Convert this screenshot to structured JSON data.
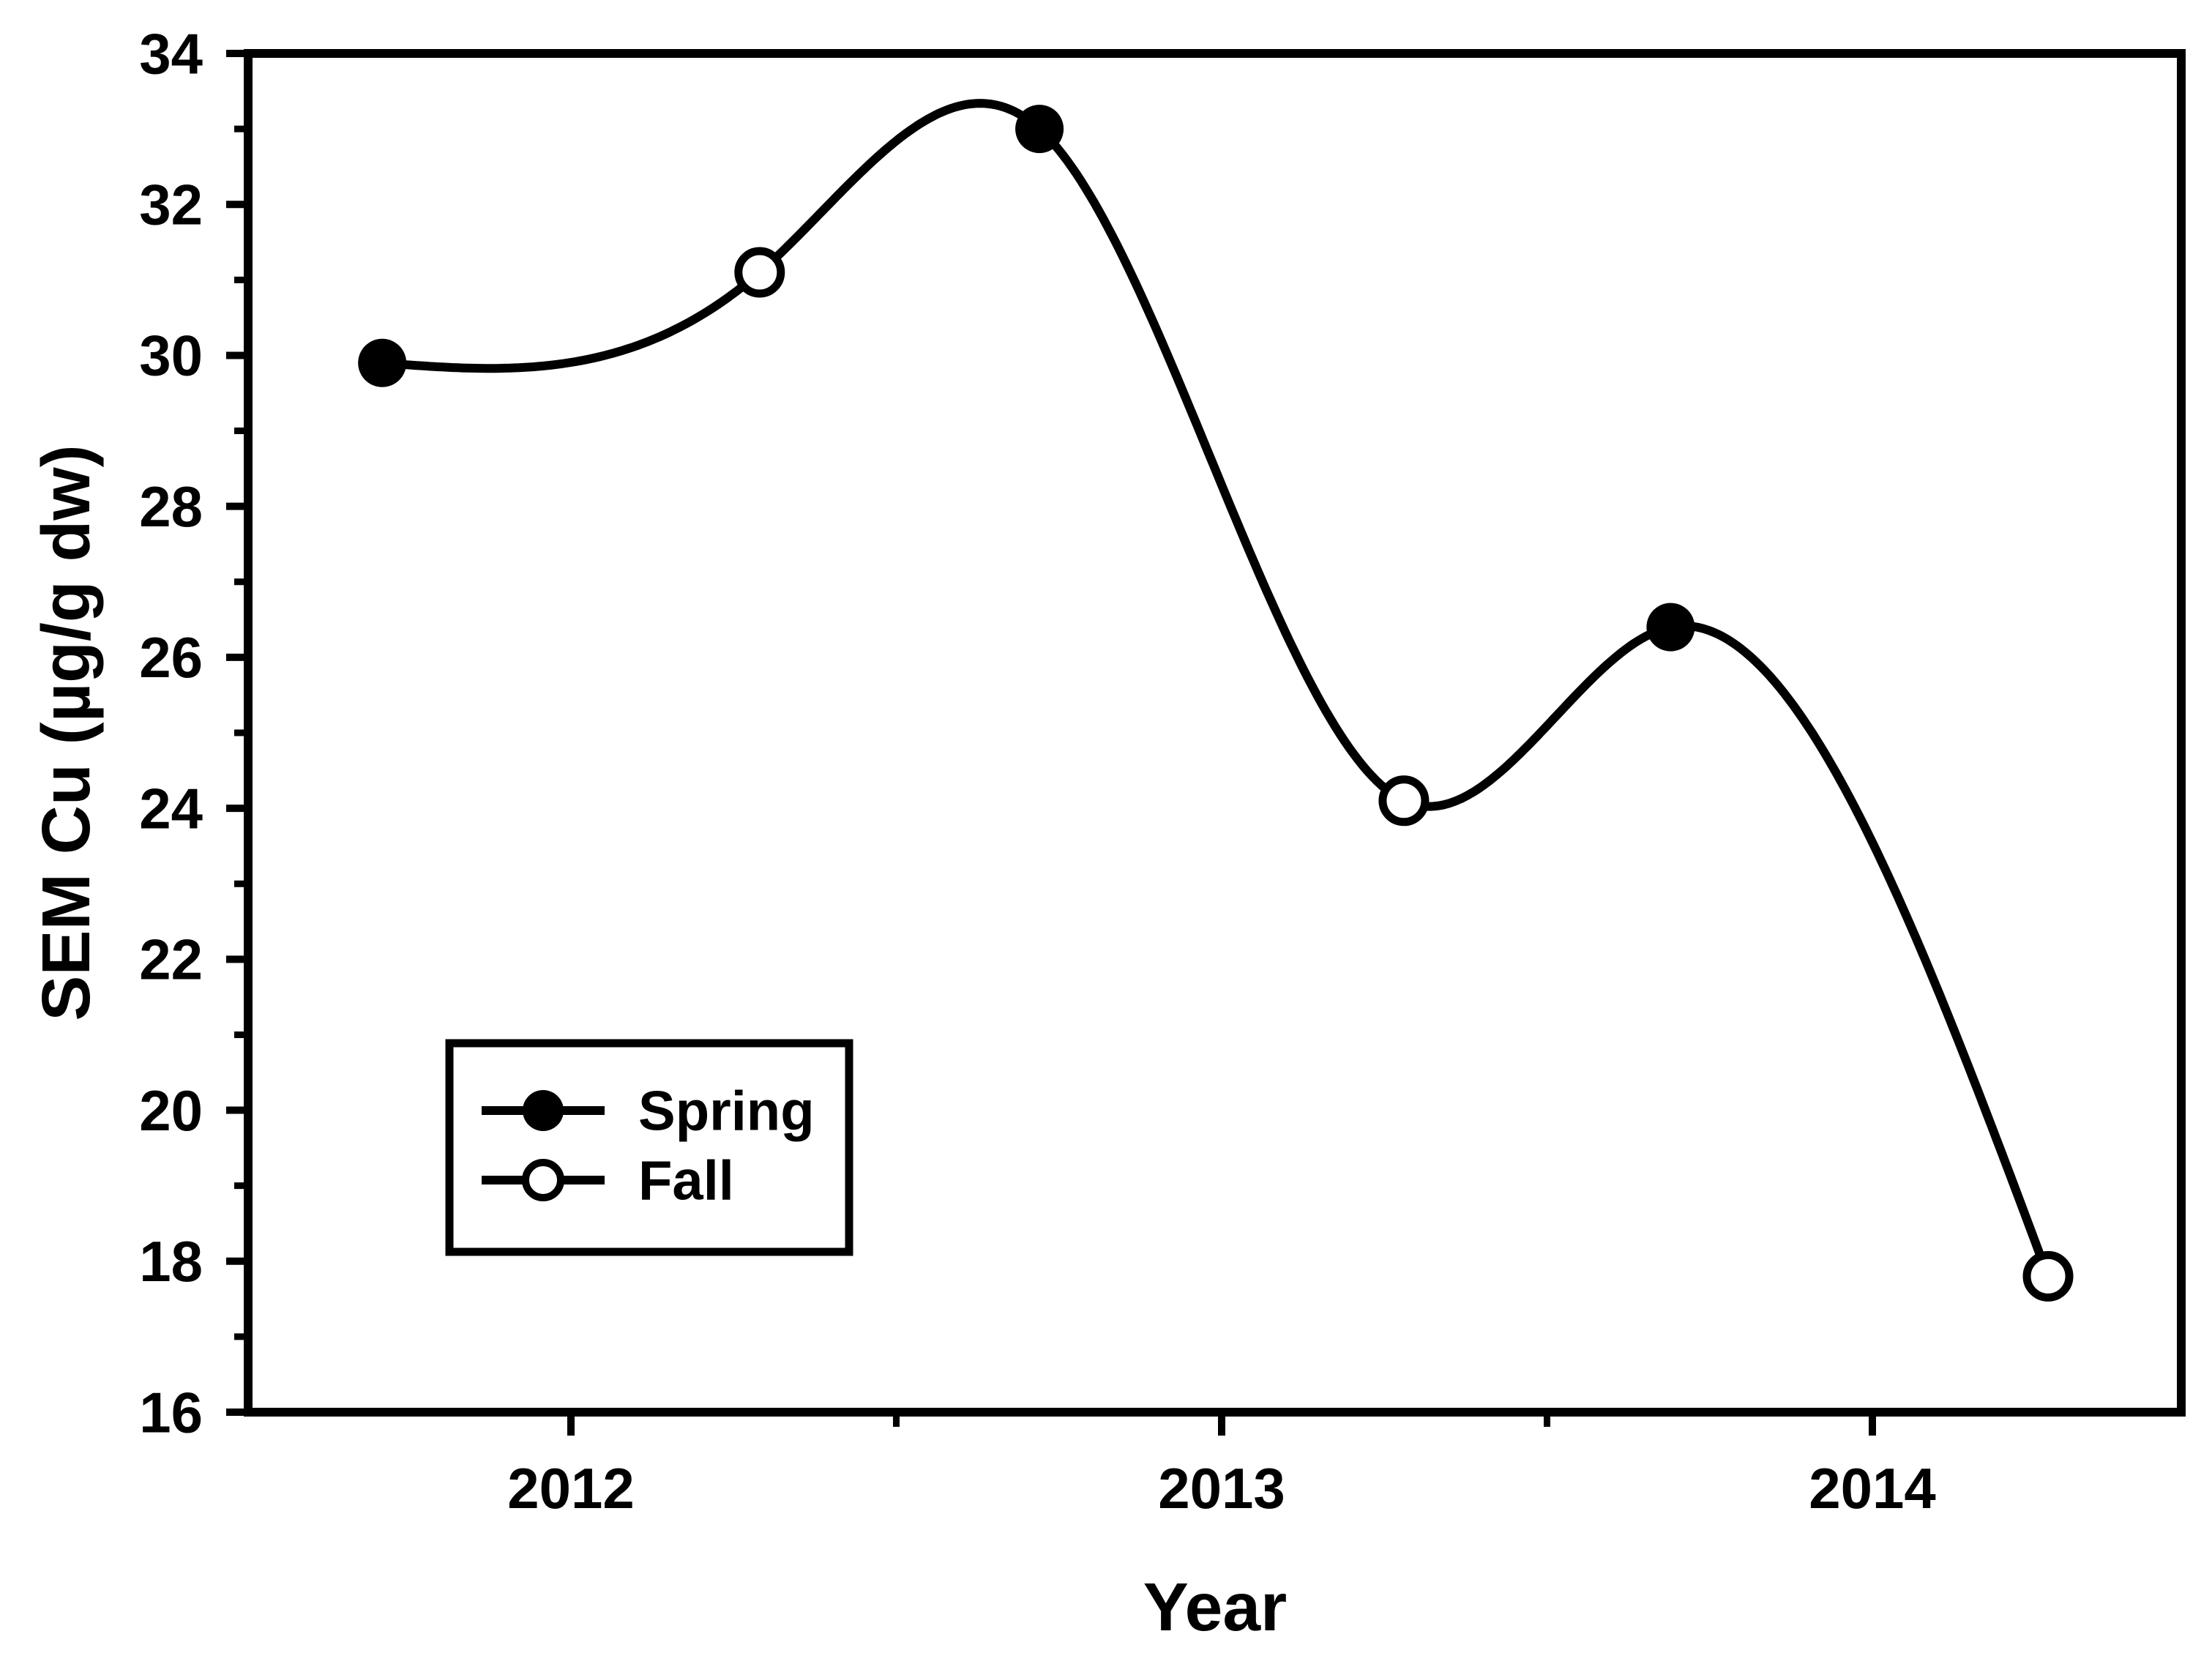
{
  "figure": {
    "background_color": "#ffffff",
    "ink_color": "#000000"
  },
  "chart_data": {
    "type": "line",
    "title": "",
    "xlabel": "Year",
    "ylabel": "SEM Cu (µg/g dw)",
    "xlim_years": [
      2011.5,
      2014.47
    ],
    "ylim": [
      16,
      34
    ],
    "x_ticks_major": [
      2012,
      2013,
      2014
    ],
    "x_ticks_minor": [
      2012.5,
      2013.5
    ],
    "y_ticks_major": [
      16,
      18,
      20,
      22,
      24,
      26,
      28,
      30,
      32,
      34
    ],
    "y_ticks_minor": [
      17,
      19,
      21,
      23,
      25,
      27,
      29,
      31,
      33
    ],
    "grid": false,
    "line_style": "smooth-natural-cubic-spline",
    "legend_position": "inside-lower-left",
    "series": [
      {
        "name": "Spring",
        "marker": "filled-circle",
        "points": [
          {
            "x": 2011.71,
            "y": 29.9
          },
          {
            "x": 2012.72,
            "y": 33.0
          },
          {
            "x": 2013.69,
            "y": 26.4
          }
        ]
      },
      {
        "name": "Fall",
        "marker": "open-circle",
        "points": [
          {
            "x": 2012.29,
            "y": 31.1
          },
          {
            "x": 2013.28,
            "y": 24.1
          },
          {
            "x": 2014.27,
            "y": 17.8
          }
        ]
      }
    ],
    "points_chronological": [
      {
        "season": "Spring",
        "x": 2011.71,
        "y": 29.9
      },
      {
        "season": "Fall",
        "x": 2012.29,
        "y": 31.1
      },
      {
        "season": "Spring",
        "x": 2012.72,
        "y": 33.0
      },
      {
        "season": "Fall",
        "x": 2013.28,
        "y": 24.1
      },
      {
        "season": "Spring",
        "x": 2013.69,
        "y": 26.4
      },
      {
        "season": "Fall",
        "x": 2014.27,
        "y": 17.8
      }
    ]
  },
  "legend": {
    "items": [
      {
        "label": "Spring",
        "marker": "filled-circle"
      },
      {
        "label": "Fall",
        "marker": "open-circle"
      }
    ]
  }
}
